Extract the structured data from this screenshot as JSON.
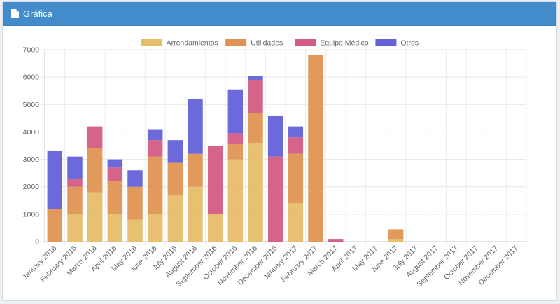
{
  "panel": {
    "title": "Gráfica",
    "icon": "file-icon"
  },
  "chart_data": {
    "type": "bar",
    "stacked": true,
    "categories": [
      "January 2016",
      "February 2016",
      "March 2016",
      "April 2016",
      "May 2016",
      "June 2016",
      "July 2016",
      "August 2016",
      "September 2016",
      "October 2016",
      "November 2016",
      "December 2016",
      "January 2017",
      "February 2017",
      "March 2017",
      "April 2017",
      "May 2017",
      "June 2017",
      "July 2017",
      "August 2017",
      "September 2017",
      "October 2017",
      "November 2017",
      "December 2017"
    ],
    "series": [
      {
        "name": "Arrendamientos",
        "color": "#e6bd6a",
        "values": [
          0,
          1000,
          1800,
          1000,
          800,
          1000,
          1700,
          2000,
          1000,
          3000,
          3600,
          0,
          1400,
          0,
          0,
          0,
          0,
          100,
          0,
          0,
          0,
          0,
          0,
          0
        ]
      },
      {
        "name": "Utilidades",
        "color": "#df9353",
        "values": [
          1200,
          1000,
          1600,
          1200,
          1200,
          2100,
          1200,
          1200,
          0,
          550,
          1100,
          0,
          1800,
          6800,
          0,
          0,
          0,
          350,
          0,
          0,
          0,
          0,
          0,
          0
        ]
      },
      {
        "name": "Equipo Médico",
        "color": "#d45c84",
        "values": [
          0,
          300,
          800,
          500,
          0,
          600,
          0,
          0,
          2500,
          400,
          1200,
          3100,
          600,
          0,
          100,
          0,
          0,
          0,
          0,
          0,
          0,
          0,
          0,
          0
        ]
      },
      {
        "name": "Otros",
        "color": "#6462d8",
        "values": [
          2100,
          800,
          0,
          300,
          600,
          400,
          800,
          2000,
          0,
          1600,
          150,
          1500,
          400,
          0,
          0,
          0,
          0,
          0,
          0,
          0,
          0,
          0,
          0,
          0
        ]
      }
    ],
    "ylim": [
      0,
      7000
    ],
    "yticks": [
      0,
      1000,
      2000,
      3000,
      4000,
      5000,
      6000,
      7000
    ],
    "grid": true,
    "legend_position": "top-center",
    "title": "",
    "xlabel": "",
    "ylabel": ""
  }
}
